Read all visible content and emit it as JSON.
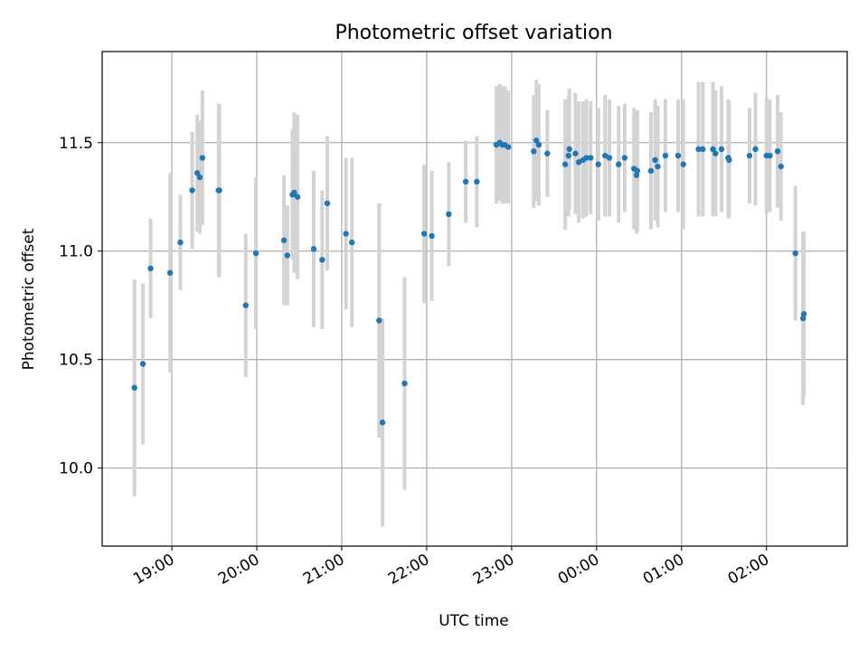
{
  "chart_data": {
    "type": "scatter",
    "title": "Photometric offset variation",
    "xlabel": "UTC time",
    "ylabel": "Photometric offset",
    "x_unit": "hours since 18:00 UTC",
    "xlim": [
      0.18,
      8.95
    ],
    "ylim": [
      9.64,
      11.92
    ],
    "grid": true,
    "x_ticks": [
      {
        "value": 1,
        "label": "19:00"
      },
      {
        "value": 2,
        "label": "20:00"
      },
      {
        "value": 3,
        "label": "21:00"
      },
      {
        "value": 4,
        "label": "22:00"
      },
      {
        "value": 5,
        "label": "23:00"
      },
      {
        "value": 6,
        "label": "00:00"
      },
      {
        "value": 7,
        "label": "01:00"
      },
      {
        "value": 8,
        "label": "02:00"
      }
    ],
    "y_ticks": [
      {
        "value": 10.0,
        "label": "10.0"
      },
      {
        "value": 10.5,
        "label": "10.5"
      },
      {
        "value": 11.0,
        "label": "11.0"
      },
      {
        "value": 11.5,
        "label": "11.5"
      }
    ],
    "series": [
      {
        "name": "offset",
        "marker_color": "#1f77b4",
        "error_color": "#d3d3d3",
        "points": [
          [
            0.56,
            10.37,
            0.5
          ],
          [
            0.66,
            10.48,
            0.37
          ],
          [
            0.75,
            10.92,
            0.23
          ],
          [
            0.98,
            10.9,
            0.46
          ],
          [
            1.1,
            11.04,
            0.22
          ],
          [
            1.24,
            11.28,
            0.27
          ],
          [
            1.3,
            11.36,
            0.27
          ],
          [
            1.33,
            11.34,
            0.26
          ],
          [
            1.36,
            11.43,
            0.31
          ],
          [
            1.55,
            11.28,
            0.4
          ],
          [
            1.56,
            11.28,
            0.4
          ],
          [
            1.87,
            10.75,
            0.33
          ],
          [
            1.99,
            10.99,
            0.35
          ],
          [
            2.32,
            11.05,
            0.3
          ],
          [
            2.36,
            10.98,
            0.23
          ],
          [
            2.42,
            11.26,
            0.3
          ],
          [
            2.44,
            11.27,
            0.37
          ],
          [
            2.48,
            11.25,
            0.38
          ],
          [
            2.67,
            11.01,
            0.36
          ],
          [
            2.77,
            10.96,
            0.32
          ],
          [
            2.83,
            11.22,
            0.31
          ],
          [
            3.05,
            11.08,
            0.35
          ],
          [
            3.12,
            11.04,
            0.39
          ],
          [
            3.44,
            10.68,
            0.54
          ],
          [
            3.48,
            10.21,
            0.48
          ],
          [
            3.74,
            10.39,
            0.49
          ],
          [
            3.97,
            11.08,
            0.32
          ],
          [
            4.06,
            11.07,
            0.3
          ],
          [
            4.26,
            11.17,
            0.24
          ],
          [
            4.46,
            11.32,
            0.19
          ],
          [
            4.59,
            11.32,
            0.21
          ],
          [
            4.82,
            11.49,
            0.27
          ],
          [
            4.86,
            11.5,
            0.27
          ],
          [
            4.89,
            11.49,
            0.27
          ],
          [
            4.92,
            11.49,
            0.27
          ],
          [
            4.96,
            11.48,
            0.26
          ],
          [
            5.26,
            11.46,
            0.26
          ],
          [
            5.29,
            11.51,
            0.28
          ],
          [
            5.32,
            11.49,
            0.28
          ],
          [
            5.42,
            11.45,
            0.2
          ],
          [
            5.63,
            11.4,
            0.3
          ],
          [
            5.67,
            11.44,
            0.28
          ],
          [
            5.68,
            11.47,
            0.28
          ],
          [
            5.75,
            11.45,
            0.28
          ],
          [
            5.79,
            11.41,
            0.28
          ],
          [
            5.84,
            11.42,
            0.27
          ],
          [
            5.88,
            11.43,
            0.27
          ],
          [
            5.93,
            11.43,
            0.26
          ],
          [
            6.02,
            11.4,
            0.26
          ],
          [
            6.1,
            11.44,
            0.28
          ],
          [
            6.15,
            11.43,
            0.27
          ],
          [
            6.26,
            11.4,
            0.27
          ],
          [
            6.33,
            11.43,
            0.25
          ],
          [
            6.44,
            11.38,
            0.28
          ],
          [
            6.47,
            11.35,
            0.27
          ],
          [
            6.48,
            11.37,
            0.28
          ],
          [
            6.64,
            11.37,
            0.27
          ],
          [
            6.69,
            11.42,
            0.28
          ],
          [
            6.72,
            11.39,
            0.28
          ],
          [
            6.81,
            11.44,
            0.26
          ],
          [
            6.96,
            11.44,
            0.26
          ],
          [
            7.02,
            11.4,
            0.3
          ],
          [
            7.2,
            11.47,
            0.31
          ],
          [
            7.25,
            11.47,
            0.31
          ],
          [
            7.37,
            11.47,
            0.31
          ],
          [
            7.4,
            11.45,
            0.29
          ],
          [
            7.47,
            11.47,
            0.29
          ],
          [
            7.55,
            11.43,
            0.27
          ],
          [
            7.56,
            11.42,
            0.27
          ],
          [
            7.8,
            11.44,
            0.22
          ],
          [
            7.87,
            11.47,
            0.26
          ],
          [
            8.0,
            11.44,
            0.27
          ],
          [
            8.04,
            11.44,
            0.26
          ],
          [
            8.13,
            11.46,
            0.26
          ],
          [
            8.17,
            11.39,
            0.25
          ],
          [
            8.34,
            10.99,
            0.31
          ],
          [
            8.43,
            10.69,
            0.4
          ],
          [
            8.44,
            10.71,
            0.38
          ]
        ]
      }
    ]
  }
}
